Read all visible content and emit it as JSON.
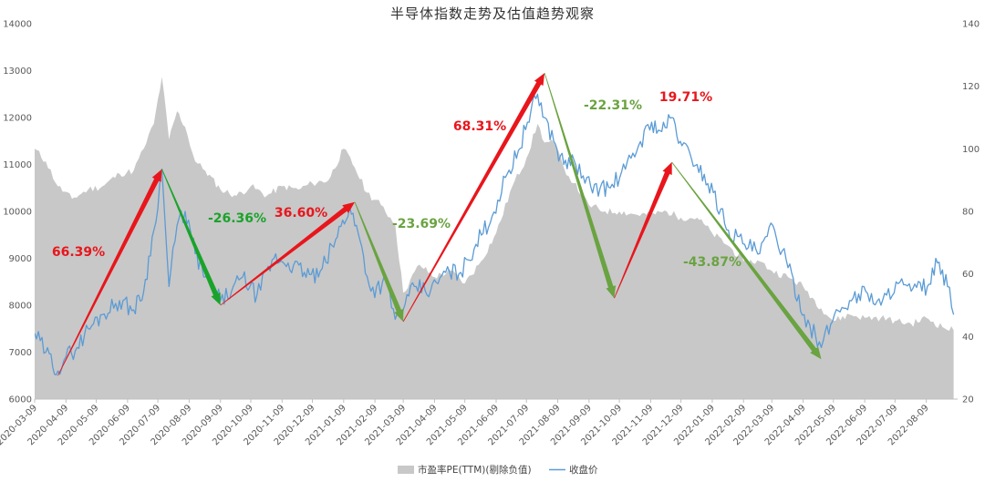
{
  "chart_data": {
    "type": "area+line",
    "title": "半导体指数走势及估值趋势观察",
    "x_tick_labels": [
      "2020-03-09",
      "2020-04-09",
      "2020-05-09",
      "2020-06-09",
      "2020-07-09",
      "2020-08-09",
      "2020-09-09",
      "2020-10-09",
      "2020-11-09",
      "2020-12-09",
      "2021-01-09",
      "2021-02-09",
      "2021-03-09",
      "2021-04-09",
      "2021-05-09",
      "2021-06-09",
      "2021-07-09",
      "2021-08-09",
      "2021-09-09",
      "2021-10-09",
      "2021-11-09",
      "2021-12-09",
      "2022-01-09",
      "2022-02-09",
      "2022-03-09",
      "2022-04-09",
      "2022-05-09",
      "2022-06-09",
      "2022-07-09",
      "2022-08-09"
    ],
    "y_left": {
      "min": 6000,
      "max": 14000,
      "ticks": [
        "6000",
        "7000",
        "8000",
        "9000",
        "10000",
        "11000",
        "12000",
        "13000",
        "14000"
      ]
    },
    "y_right": {
      "min": 20,
      "max": 140,
      "ticks": [
        "20",
        "40",
        "60",
        "80",
        "100",
        "120",
        "140"
      ]
    },
    "grid": false,
    "legend_position": "bottom",
    "legend": [
      {
        "name": "市盈率PE(TTM)(剔除负值)",
        "color": "#c8c8c8",
        "kind": "area"
      },
      {
        "name": "收盘价",
        "color": "#5b9bd5",
        "kind": "line"
      }
    ],
    "series": [
      {
        "name": "市盈率PE(TTM)(剔除负值)",
        "axis": "right",
        "x": [
          "2020-03-09",
          "2020-03-20",
          "2020-04-01",
          "2020-04-15",
          "2020-05-01",
          "2020-05-15",
          "2020-06-01",
          "2020-06-15",
          "2020-06-25",
          "2020-07-05",
          "2020-07-13",
          "2020-07-20",
          "2020-07-28",
          "2020-08-05",
          "2020-08-15",
          "2020-08-25",
          "2020-09-09",
          "2020-09-25",
          "2020-10-09",
          "2020-10-25",
          "2020-11-09",
          "2020-11-25",
          "2020-12-09",
          "2020-12-25",
          "2021-01-09",
          "2021-01-20",
          "2021-02-01",
          "2021-02-15",
          "2021-03-01",
          "2021-03-09",
          "2021-03-25",
          "2021-04-09",
          "2021-04-25",
          "2021-05-09",
          "2021-05-25",
          "2021-06-09",
          "2021-06-25",
          "2021-07-09",
          "2021-07-20",
          "2021-07-27",
          "2021-08-05",
          "2021-08-15",
          "2021-08-25",
          "2021-09-09",
          "2021-09-25",
          "2021-10-09",
          "2021-10-25",
          "2021-11-09",
          "2021-11-25",
          "2021-12-09",
          "2021-12-25",
          "2022-01-09",
          "2022-01-25",
          "2022-02-09",
          "2022-02-25",
          "2022-03-09",
          "2022-03-25",
          "2022-04-09",
          "2022-04-27",
          "2022-05-09",
          "2022-05-25",
          "2022-06-09",
          "2022-06-25",
          "2022-07-09",
          "2022-07-25",
          "2022-08-09",
          "2022-08-25",
          "2022-09-05"
        ],
        "values": [
          100,
          96,
          88,
          84,
          87,
          88,
          92,
          93,
          100,
          108,
          123,
          103,
          112,
          107,
          96,
          93,
          87,
          85,
          88,
          85,
          88,
          87,
          89,
          90,
          100,
          94,
          86,
          82,
          76,
          54,
          63,
          59,
          61,
          57,
          64,
          73,
          88,
          97,
          108,
          102,
          102,
          94,
          89,
          82,
          80,
          80,
          79,
          79,
          80,
          78,
          78,
          73,
          69,
          64,
          64,
          61,
          59,
          56,
          49,
          45,
          47,
          46,
          46,
          45,
          44,
          46,
          43,
          42
        ]
      },
      {
        "name": "收盘价",
        "axis": "left",
        "x": [
          "2020-03-09",
          "2020-03-20",
          "2020-04-01",
          "2020-04-09",
          "2020-04-20",
          "2020-05-01",
          "2020-05-15",
          "2020-06-01",
          "2020-06-15",
          "2020-06-25",
          "2020-07-05",
          "2020-07-13",
          "2020-07-20",
          "2020-07-28",
          "2020-08-05",
          "2020-08-15",
          "2020-08-25",
          "2020-09-09",
          "2020-09-20",
          "2020-10-01",
          "2020-10-15",
          "2020-11-01",
          "2020-11-15",
          "2020-12-01",
          "2020-12-15",
          "2021-01-01",
          "2021-01-15",
          "2021-01-25",
          "2021-02-05",
          "2021-02-20",
          "2021-03-01",
          "2021-03-09",
          "2021-03-20",
          "2021-04-05",
          "2021-04-20",
          "2021-05-05",
          "2021-05-20",
          "2021-06-05",
          "2021-06-20",
          "2021-07-01",
          "2021-07-10",
          "2021-07-20",
          "2021-07-27",
          "2021-08-05",
          "2021-08-15",
          "2021-08-25",
          "2021-09-05",
          "2021-09-20",
          "2021-09-30",
          "2021-10-15",
          "2021-10-28",
          "2021-11-10",
          "2021-11-20",
          "2021-11-30",
          "2021-12-10",
          "2021-12-25",
          "2022-01-10",
          "2022-01-25",
          "2022-02-10",
          "2022-02-25",
          "2022-03-10",
          "2022-03-25",
          "2022-04-10",
          "2022-04-27",
          "2022-05-10",
          "2022-05-25",
          "2022-06-10",
          "2022-06-25",
          "2022-07-10",
          "2022-07-25",
          "2022-08-10",
          "2022-08-20",
          "2022-08-30",
          "2022-09-05"
        ],
        "values": [
          7400,
          7000,
          6600,
          6900,
          7100,
          7500,
          7800,
          8100,
          7900,
          8300,
          9600,
          10900,
          8400,
          9700,
          10000,
          9100,
          8600,
          8100,
          8300,
          8600,
          8200,
          9000,
          8900,
          8700,
          8600,
          9400,
          10100,
          9400,
          8300,
          8500,
          7700,
          7900,
          8400,
          8300,
          8700,
          8700,
          9300,
          9900,
          10800,
          11300,
          11900,
          12500,
          12000,
          11500,
          11000,
          11100,
          10600,
          10500,
          10500,
          10900,
          11400,
          11900,
          11700,
          12000,
          11400,
          11000,
          10400,
          9600,
          9300,
          9100,
          9700,
          8800,
          7800,
          7100,
          7800,
          8100,
          8300,
          8000,
          8500,
          8300,
          8400,
          8900,
          8400,
          7800
        ]
      }
    ],
    "annotations": [
      {
        "text": "66.39%",
        "color": "#e8161c",
        "from": [
          "2020-04-01",
          6500
        ],
        "to": [
          "2020-07-13",
          10900
        ]
      },
      {
        "text": "-26.36%",
        "color": "#1aa32a",
        "from": [
          "2020-07-13",
          10900
        ],
        "to": [
          "2020-09-09",
          8000
        ]
      },
      {
        "text": "36.60%",
        "color": "#e8161c",
        "from": [
          "2020-09-09",
          8000
        ],
        "to": [
          "2021-01-20",
          10200
        ]
      },
      {
        "text": "-23.69%",
        "color": "#6aa341",
        "from": [
          "2021-01-20",
          10200
        ],
        "to": [
          "2021-03-09",
          7650
        ]
      },
      {
        "text": "68.31%",
        "color": "#e8161c",
        "from": [
          "2021-03-09",
          7650
        ],
        "to": [
          "2021-07-27",
          12950
        ]
      },
      {
        "text": "-22.31%",
        "color": "#6aa341",
        "from": [
          "2021-07-27",
          12950
        ],
        "to": [
          "2021-10-04",
          8150
        ]
      },
      {
        "text": "19.71%",
        "color": "#e8161c",
        "from": [
          "2021-10-04",
          8150
        ],
        "to": [
          "2021-11-30",
          11050
        ]
      },
      {
        "text": "-43.87%",
        "color": "#6aa341",
        "from": [
          "2021-11-30",
          11050
        ],
        "to": [
          "2022-04-27",
          6850
        ]
      }
    ]
  }
}
